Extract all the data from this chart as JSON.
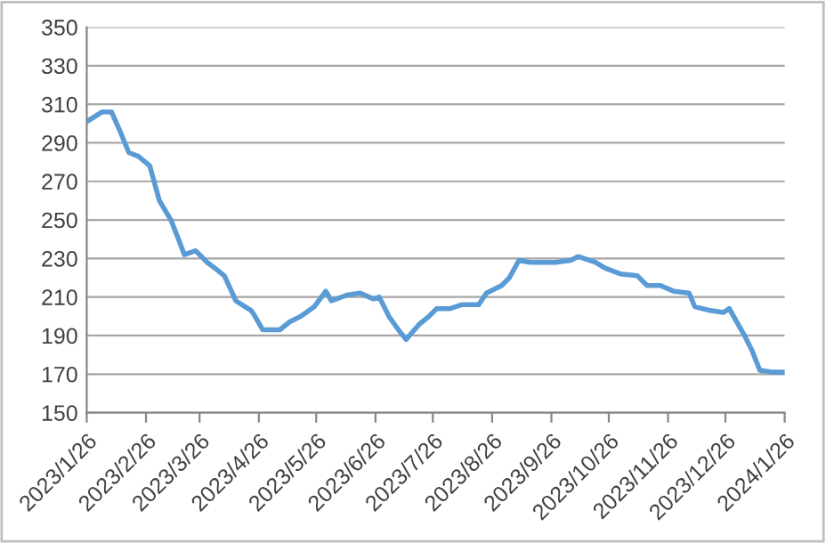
{
  "chart_data": {
    "type": "line",
    "x": [
      "2023-01-26",
      "2023-02-03",
      "2023-02-08",
      "2023-02-12",
      "2023-02-17",
      "2023-02-22",
      "2023-02-28",
      "2023-03-05",
      "2023-03-11",
      "2023-03-15",
      "2023-03-18",
      "2023-03-24",
      "2023-03-30",
      "2023-04-03",
      "2023-04-08",
      "2023-04-14",
      "2023-04-22",
      "2023-04-24",
      "2023-04-28",
      "2023-05-07",
      "2023-05-12",
      "2023-05-18",
      "2023-05-25",
      "2023-05-31",
      "2023-06-03",
      "2023-06-11",
      "2023-06-18",
      "2023-06-25",
      "2023-06-28",
      "2023-07-03",
      "2023-07-08",
      "2023-07-12",
      "2023-07-19",
      "2023-07-24",
      "2023-07-28",
      "2023-08-04",
      "2023-08-10",
      "2023-08-19",
      "2023-08-23",
      "2023-08-31",
      "2023-09-04",
      "2023-09-09",
      "2023-09-15",
      "2023-09-28",
      "2023-10-06",
      "2023-10-10",
      "2023-10-19",
      "2023-10-24",
      "2023-11-01",
      "2023-11-10",
      "2023-11-15",
      "2023-11-22",
      "2023-11-29",
      "2023-12-07",
      "2023-12-10",
      "2023-12-18",
      "2023-12-25",
      "2023-12-28",
      "2024-01-01",
      "2024-01-05",
      "2024-01-09",
      "2024-01-13",
      "2024-01-20",
      "2024-01-26"
    ],
    "series": [
      {
        "color": "#5b9bd5",
        "values": [
          301,
          306,
          306,
          297,
          285,
          283,
          278,
          260,
          250,
          240,
          232,
          234,
          228,
          225,
          221,
          208,
          203,
          200,
          193,
          193,
          197,
          200,
          205,
          213,
          208,
          211,
          212,
          209,
          210,
          200,
          193,
          188,
          196,
          200,
          204,
          204,
          206,
          206,
          212,
          216,
          220,
          229,
          228,
          228,
          229,
          231,
          228,
          225,
          222,
          221,
          216,
          216,
          213,
          212,
          205,
          203,
          202,
          204,
          197,
          190,
          182,
          172,
          171,
          171
        ]
      }
    ],
    "xlim": [
      "2023-01-26",
      "2024-01-26"
    ],
    "xticks": [
      {
        "value": "2023-01-26",
        "label": "2023/1/26"
      },
      {
        "value": "2023-02-26",
        "label": "2023/2/26"
      },
      {
        "value": "2023-03-26",
        "label": "2023/3/26"
      },
      {
        "value": "2023-04-26",
        "label": "2023/4/26"
      },
      {
        "value": "2023-05-26",
        "label": "2023/5/26"
      },
      {
        "value": "2023-06-26",
        "label": "2023/6/26"
      },
      {
        "value": "2023-07-26",
        "label": "2023/7/26"
      },
      {
        "value": "2023-08-26",
        "label": "2023/8/26"
      },
      {
        "value": "2023-09-26",
        "label": "2023/9/26"
      },
      {
        "value": "2023-10-26",
        "label": "2023/10/26"
      },
      {
        "value": "2023-11-26",
        "label": "2023/11/26"
      },
      {
        "value": "2023-12-26",
        "label": "2023/12/26"
      },
      {
        "value": "2024-01-26",
        "label": "2024/1/26"
      }
    ],
    "ylim": [
      150,
      350
    ],
    "yticks": [
      150,
      170,
      190,
      210,
      230,
      250,
      270,
      290,
      310,
      330,
      350
    ],
    "grid": "y",
    "marker": "none",
    "line_style": "solid"
  }
}
